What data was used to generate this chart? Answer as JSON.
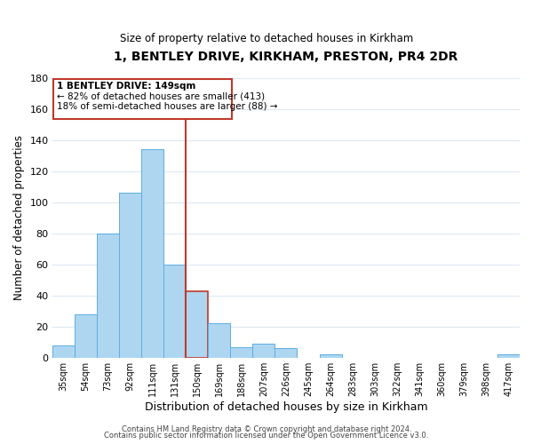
{
  "title": "1, BENTLEY DRIVE, KIRKHAM, PRESTON, PR4 2DR",
  "subtitle": "Size of property relative to detached houses in Kirkham",
  "xlabel": "Distribution of detached houses by size in Kirkham",
  "ylabel": "Number of detached properties",
  "bar_labels": [
    "35sqm",
    "54sqm",
    "73sqm",
    "92sqm",
    "111sqm",
    "131sqm",
    "150sqm",
    "169sqm",
    "188sqm",
    "207sqm",
    "226sqm",
    "245sqm",
    "264sqm",
    "283sqm",
    "303sqm",
    "322sqm",
    "341sqm",
    "360sqm",
    "379sqm",
    "398sqm",
    "417sqm"
  ],
  "bar_heights": [
    8,
    28,
    80,
    106,
    134,
    60,
    43,
    22,
    7,
    9,
    6,
    0,
    2,
    0,
    0,
    0,
    0,
    0,
    0,
    0,
    2
  ],
  "bar_color": "#aed6f1",
  "bar_edge_color": "#5dade2",
  "highlight_bar_index": 6,
  "vline_color": "#c0392b",
  "ylim": [
    0,
    180
  ],
  "yticks": [
    0,
    20,
    40,
    60,
    80,
    100,
    120,
    140,
    160,
    180
  ],
  "annotation_title": "1 BENTLEY DRIVE: 149sqm",
  "annotation_line1": "← 82% of detached houses are smaller (413)",
  "annotation_line2": "18% of semi-detached houses are larger (88) →",
  "annotation_box_color": "#ffffff",
  "annotation_box_edge": "#c0392b",
  "footer1": "Contains HM Land Registry data © Crown copyright and database right 2024.",
  "footer2": "Contains public sector information licensed under the Open Government Licence v3.0.",
  "background_color": "#ffffff",
  "grid_color": "#dce9f5"
}
